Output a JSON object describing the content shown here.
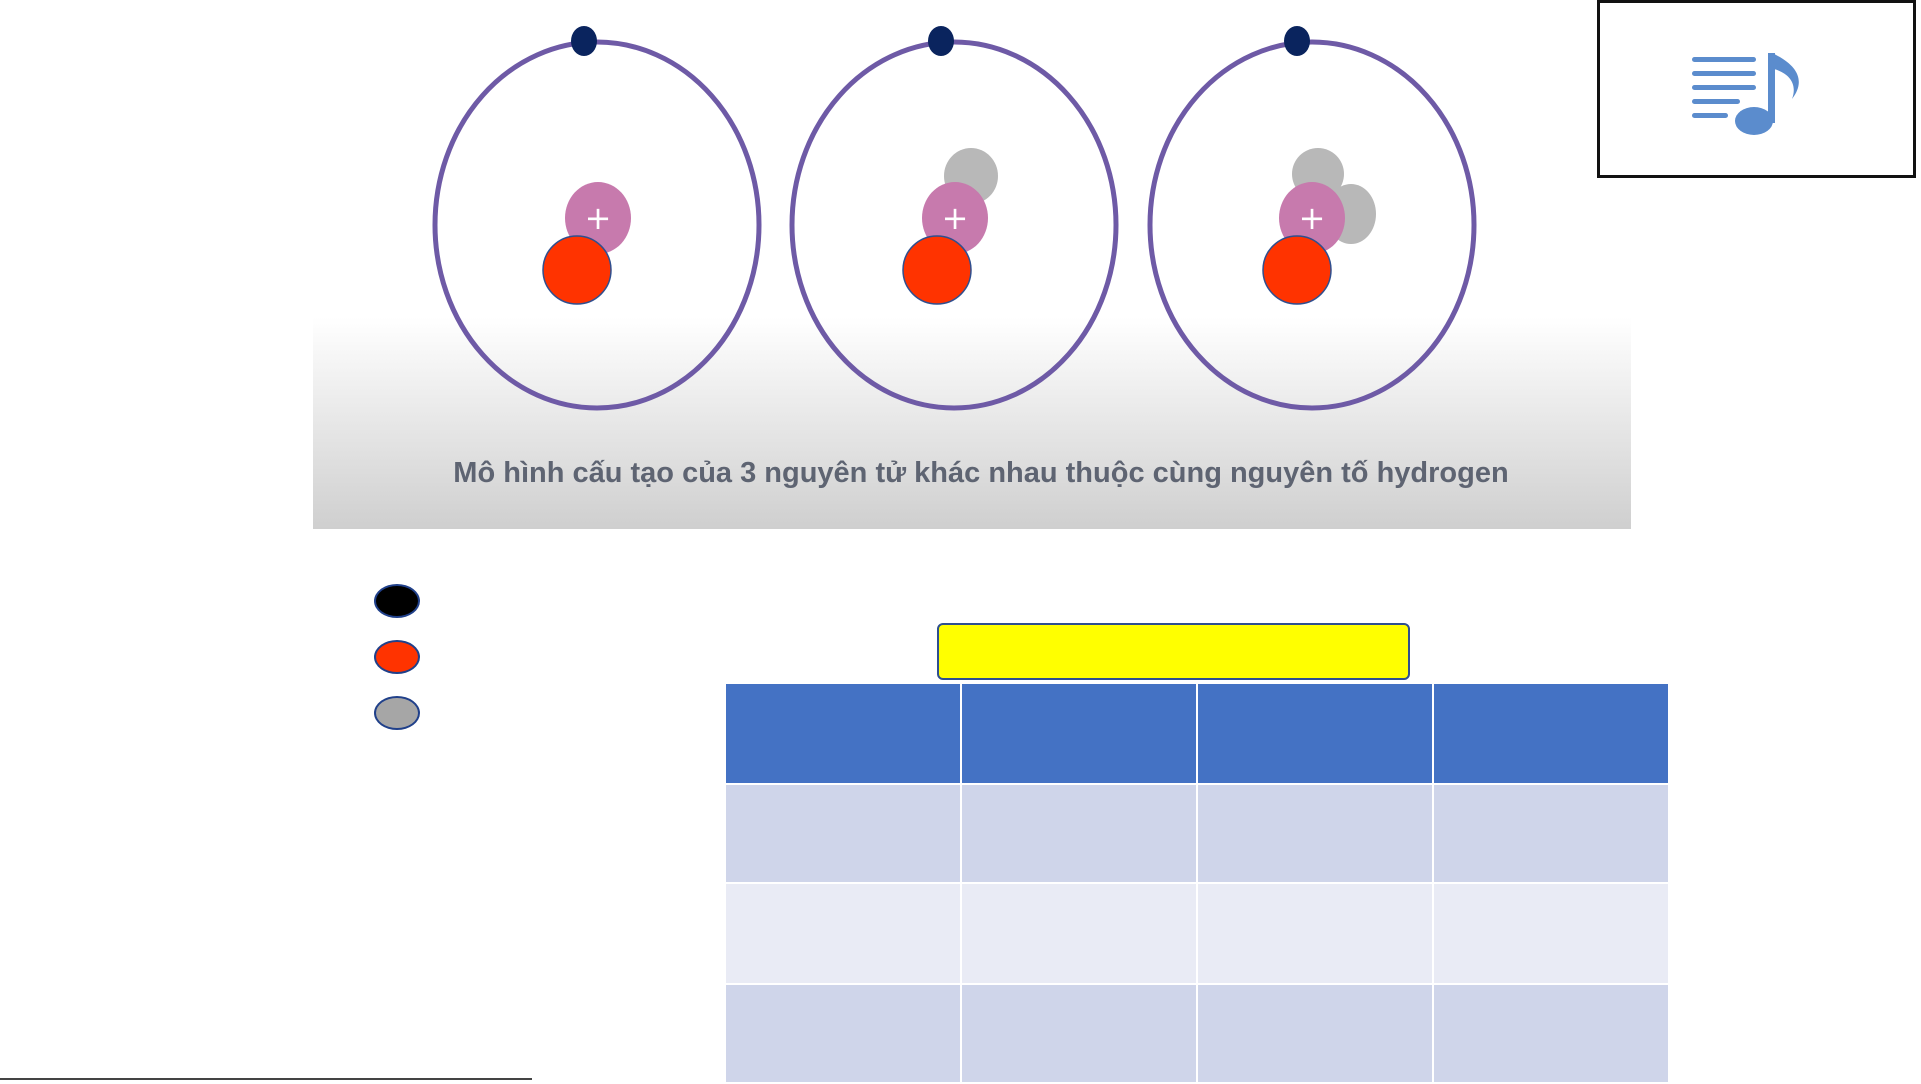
{
  "diagram": {
    "caption": "Mô hình cấu tạo của 3 nguyên tử khác nhau thuộc cùng nguyên tố hydrogen",
    "proton_symbol": "+",
    "atoms": [
      {
        "neutrons": 0
      },
      {
        "neutrons": 1
      },
      {
        "neutrons": 2
      }
    ]
  },
  "audio_button": {
    "icon": "playlist-music-icon"
  },
  "legend": {
    "items": [
      {
        "color": "#000000",
        "label": ""
      },
      {
        "color": "#ff3300",
        "label": ""
      },
      {
        "color": "#a6a6a6",
        "label": ""
      }
    ]
  },
  "table": {
    "title": "",
    "headers": [
      "",
      "",
      "",
      ""
    ],
    "rows": [
      [
        "",
        "",
        "",
        ""
      ],
      [
        "",
        "",
        "",
        ""
      ],
      [
        "",
        "",
        "",
        ""
      ]
    ]
  },
  "colors": {
    "orbit": "#6e5aa6",
    "electron": "#0a245e",
    "proton": "#c77aad",
    "neutron": "#b8b8b8",
    "red_particle": "#ff3300",
    "header_blue": "#4472c4",
    "highlight": "#ffff00"
  }
}
